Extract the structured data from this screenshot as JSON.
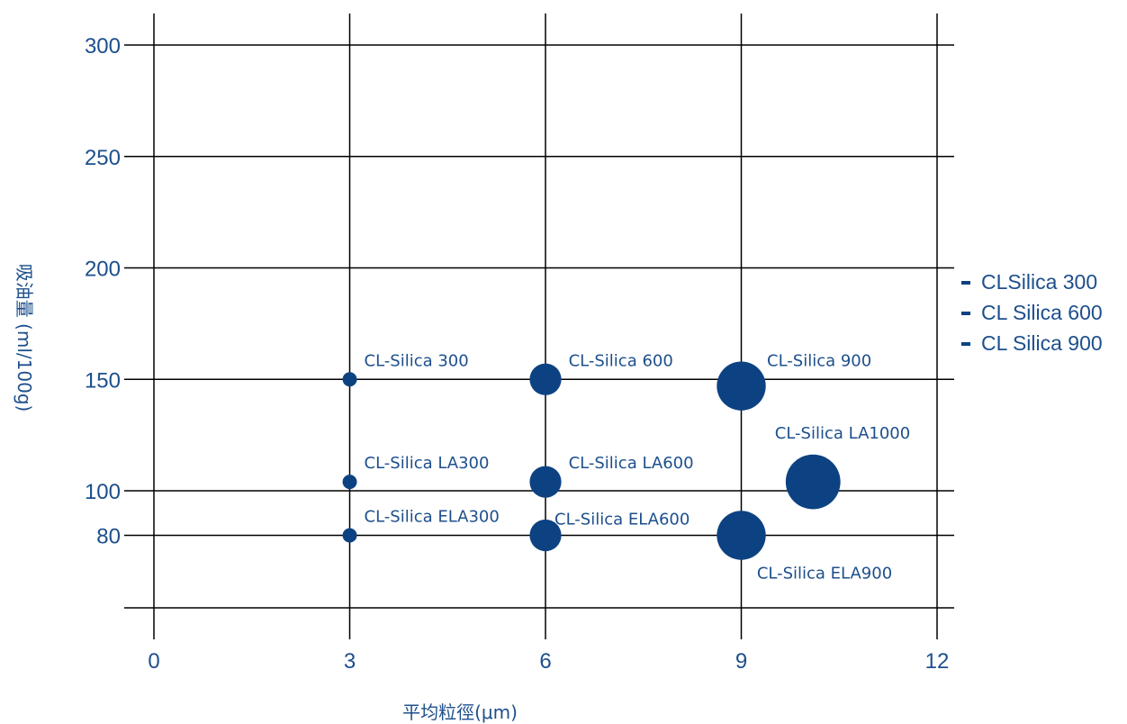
{
  "chart_data": {
    "type": "scatter",
    "title": "",
    "xlabel": "平均粒徑(μm)",
    "ylabel": "吸油量 (ml/100g)",
    "xlim": [
      0,
      12
    ],
    "ylim": [
      47,
      300
    ],
    "x_ticks": [
      "0",
      "3",
      "6",
      "9",
      "12"
    ],
    "y_ticks": [
      "300",
      "250",
      "200",
      "150",
      "100",
      "80"
    ],
    "y_tick_values": [
      300,
      250,
      200,
      150,
      100,
      80
    ],
    "grid": true,
    "legend_position": "right",
    "legend": [
      "CLSilica 300",
      "CL Silica 600",
      "CL Silica 900"
    ],
    "marker_color": "#0d4282",
    "text_color": "#1d4f8c",
    "points": [
      {
        "label": "CL-Silica 300",
        "x": 3,
        "y": 150,
        "size": 3
      },
      {
        "label": "CL-Silica 600",
        "x": 6,
        "y": 150,
        "size": 6
      },
      {
        "label": "CL-Silica 900",
        "x": 9,
        "y": 147,
        "size": 9
      },
      {
        "label": "CL-Silica LA300",
        "x": 3,
        "y": 104,
        "size": 3
      },
      {
        "label": "CL-Silica LA600",
        "x": 6,
        "y": 104,
        "size": 6
      },
      {
        "label": "CL-Silica LA1000",
        "x": 10.1,
        "y": 104,
        "size": 10
      },
      {
        "label": "CL-Silica ELA300",
        "x": 3,
        "y": 80,
        "size": 3
      },
      {
        "label": "CL-Silica ELA600",
        "x": 6,
        "y": 80,
        "size": 6
      },
      {
        "label": "CL-Silica ELA900",
        "x": 9,
        "y": 80,
        "size": 9
      }
    ]
  }
}
